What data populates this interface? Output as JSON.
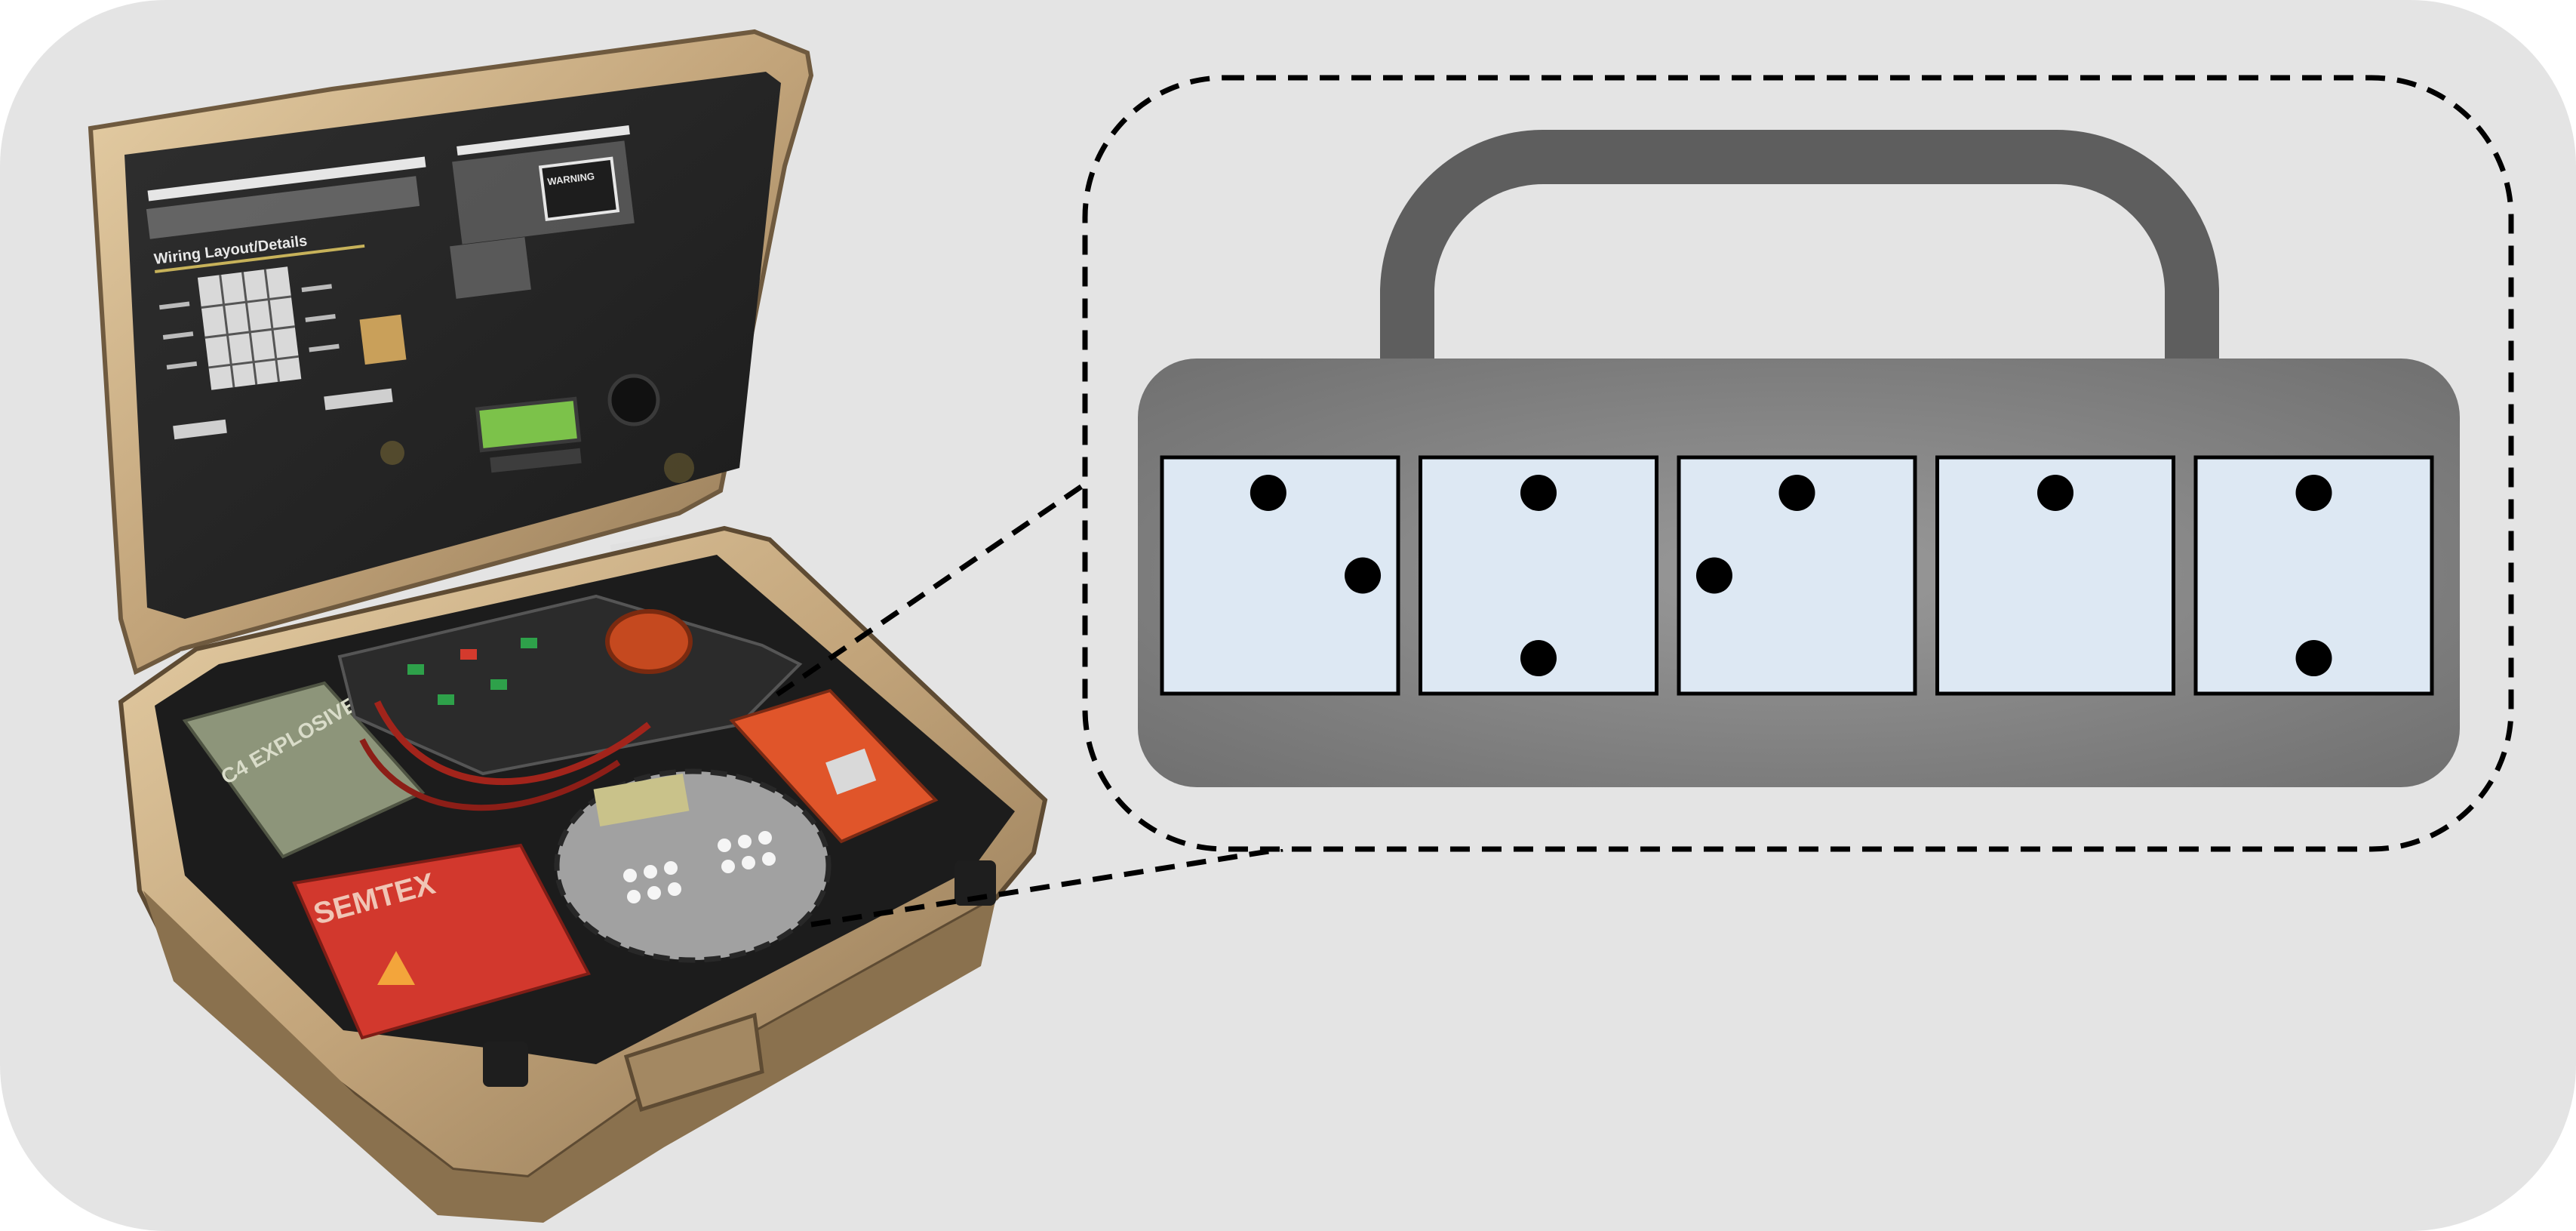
{
  "briefcase": {
    "lid_heading": "Wiring Layout/Details",
    "block_left": "C4 EXPLOSIVE",
    "block_right": "SEMTEX",
    "warning": "WARNING"
  },
  "callout": {
    "dice": [
      {
        "face": 2,
        "pips": [
          [
            0.45,
            0.15
          ],
          [
            0.85,
            0.5
          ]
        ]
      },
      {
        "face": 2,
        "pips": [
          [
            0.5,
            0.15
          ],
          [
            0.5,
            0.85
          ]
        ]
      },
      {
        "face": 2,
        "pips": [
          [
            0.5,
            0.15
          ],
          [
            0.15,
            0.5
          ]
        ]
      },
      {
        "face": 1,
        "pips": [
          [
            0.5,
            0.15
          ]
        ]
      },
      {
        "face": 2,
        "pips": [
          [
            0.5,
            0.15
          ],
          [
            0.5,
            0.85
          ]
        ]
      }
    ]
  },
  "colors": {
    "background": "#e4e4e4",
    "bar": "#7a7a7a",
    "handle": "#5e5e5e",
    "die_fill": "#dde8f3",
    "pip": "#000000",
    "case_frame": "#c9ac82",
    "lid_panel": "#262626",
    "lcd": "#7cc24a",
    "red_device": "#e0552a",
    "red_block": "#d2382d",
    "green_block": "#8d957a"
  }
}
